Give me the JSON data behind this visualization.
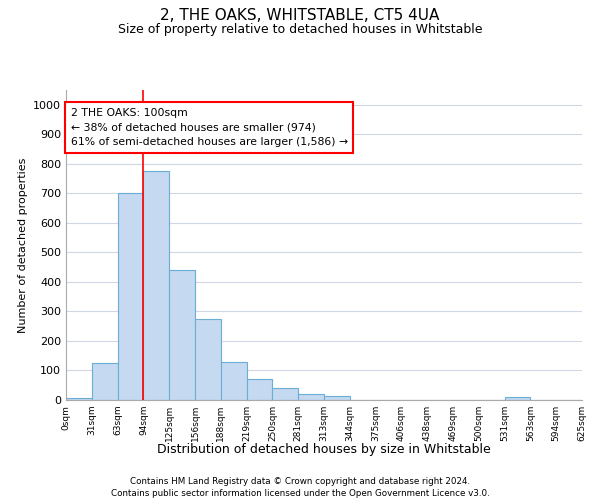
{
  "title": "2, THE OAKS, WHITSTABLE, CT5 4UA",
  "subtitle": "Size of property relative to detached houses in Whitstable",
  "xlabel": "Distribution of detached houses by size in Whitstable",
  "ylabel": "Number of detached properties",
  "heights": [
    7,
    127,
    700,
    775,
    440,
    275,
    130,
    70,
    40,
    22,
    12,
    0,
    0,
    0,
    0,
    0,
    0,
    10,
    0,
    0
  ],
  "bar_color": "#c5d9f0",
  "bar_edge_color": "#6aaed6",
  "tick_labels": [
    "0sqm",
    "31sqm",
    "63sqm",
    "94sqm",
    "125sqm",
    "156sqm",
    "188sqm",
    "219sqm",
    "250sqm",
    "281sqm",
    "313sqm",
    "344sqm",
    "375sqm",
    "406sqm",
    "438sqm",
    "469sqm",
    "500sqm",
    "531sqm",
    "563sqm",
    "594sqm",
    "625sqm"
  ],
  "ylim": [
    0,
    1050
  ],
  "yticks": [
    0,
    100,
    200,
    300,
    400,
    500,
    600,
    700,
    800,
    900,
    1000
  ],
  "annotation_text": "2 THE OAKS: 100sqm\n← 38% of detached houses are smaller (974)\n61% of semi-detached houses are larger (1,586) →",
  "vline_x_data": 3.0,
  "grid_color": "#d0d8e8",
  "footer_line1": "Contains HM Land Registry data © Crown copyright and database right 2024.",
  "footer_line2": "Contains public sector information licensed under the Open Government Licence v3.0."
}
